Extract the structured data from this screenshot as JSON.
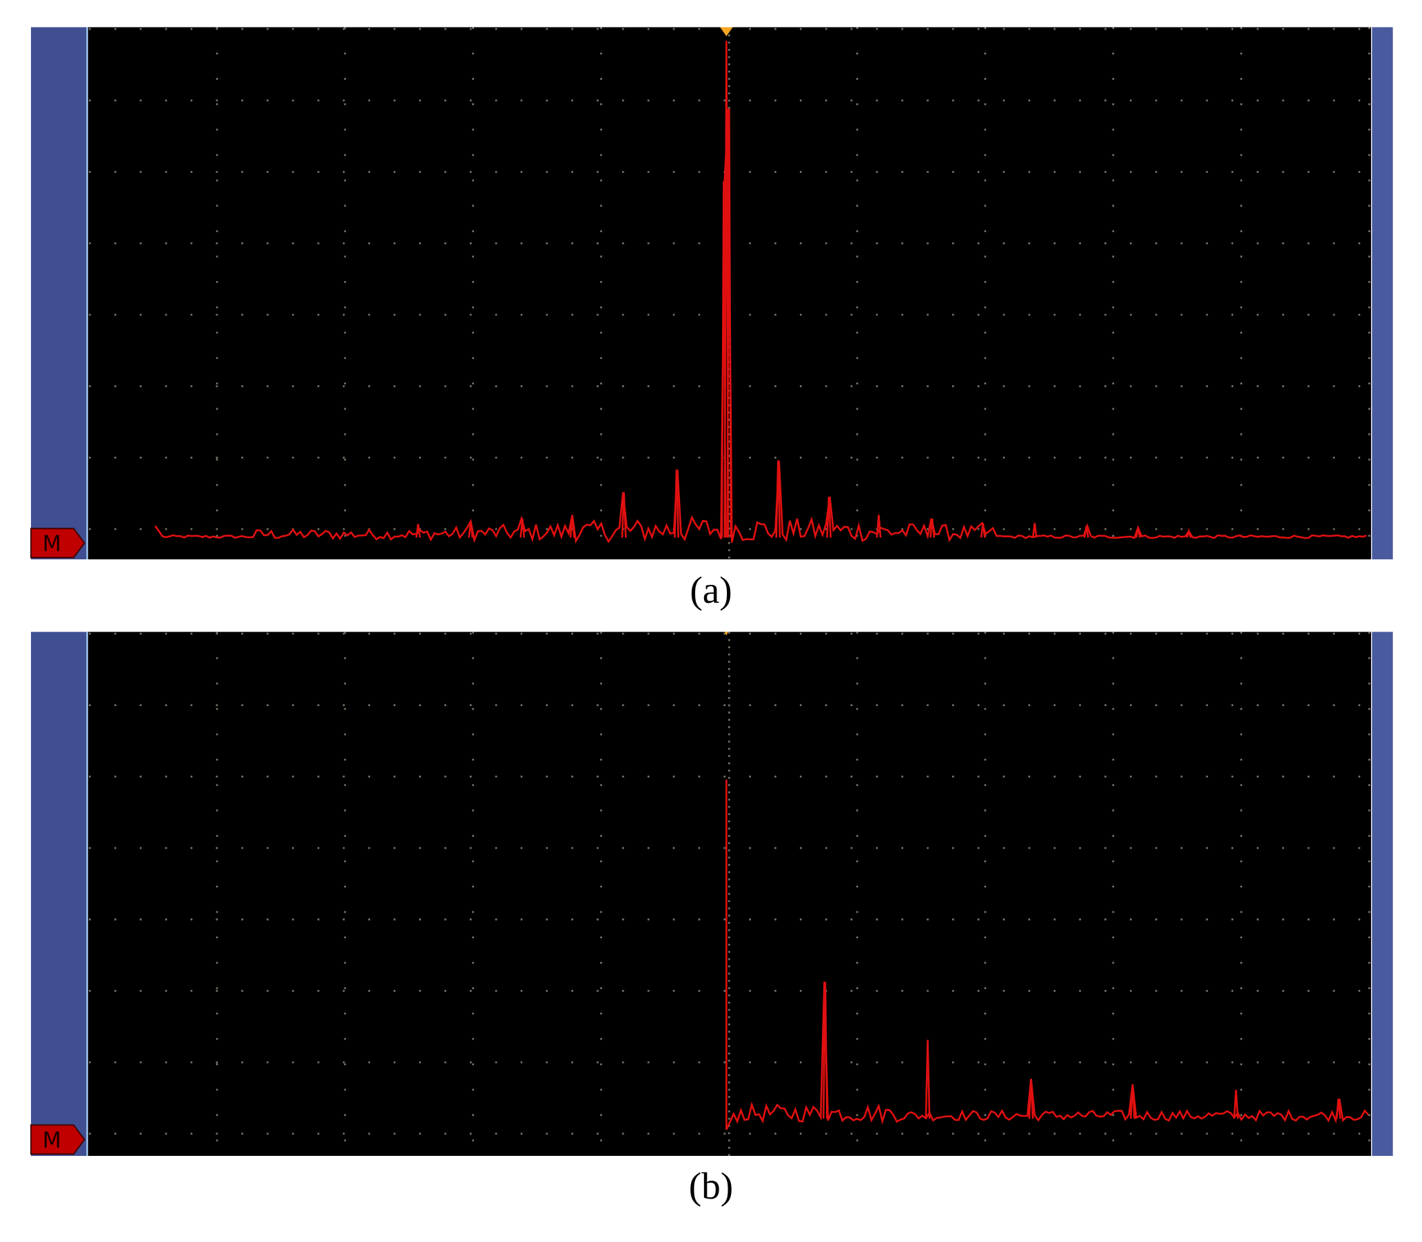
{
  "panels": [
    {
      "marker": "M",
      "caption": "(a)"
    },
    {
      "marker": "M",
      "caption": "(b)"
    }
  ]
}
